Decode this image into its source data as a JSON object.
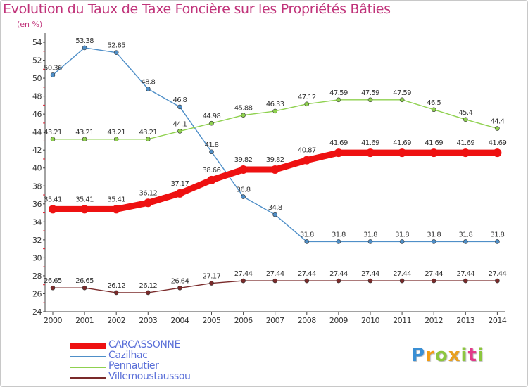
{
  "title": "Evolution du Taux de Taxe Foncière sur les Propriétés Bâties",
  "unit": "(en %)",
  "logo": {
    "letters": [
      "P",
      "r",
      "o",
      "x",
      "i",
      "t",
      "i"
    ],
    "colors": [
      "#3a8fd4",
      "#f39c12",
      "#8cc63e",
      "#e8a020",
      "#8cc63e",
      "#e23a8a",
      "#8cc63e"
    ]
  },
  "chart_data": {
    "type": "line",
    "title": "Evolution du Taux de Taxe Foncière sur les Propriétés Bâties",
    "ylabel": "(en %)",
    "xlabel": "",
    "x": [
      2000,
      2001,
      2002,
      2003,
      2004,
      2005,
      2006,
      2007,
      2008,
      2009,
      2010,
      2011,
      2012,
      2013,
      2014
    ],
    "ylim": [
      24,
      54
    ],
    "yticks": [
      24,
      26,
      28,
      30,
      32,
      34,
      36,
      38,
      40,
      42,
      44,
      46,
      48,
      50,
      52,
      54
    ],
    "grid": false,
    "legend": "bottom-left",
    "series": [
      {
        "name": "CARCASSONNE",
        "color": "#ee1111",
        "emphasis": true,
        "values": [
          35.41,
          35.41,
          35.41,
          36.12,
          37.17,
          38.66,
          39.82,
          39.82,
          40.87,
          41.69,
          41.69,
          41.69,
          41.69,
          41.69,
          41.69
        ],
        "labels": [
          "35.41",
          "35.41",
          "35.41",
          "36.12",
          "37.17",
          "38.66",
          "39.82",
          "39.82",
          "40.87",
          "41.69",
          "41.69",
          "41.69",
          "41.69",
          "41.69",
          "41.69"
        ]
      },
      {
        "name": "Cazilhac",
        "color": "#4f8fc8",
        "values": [
          50.36,
          53.38,
          52.85,
          48.8,
          46.8,
          41.8,
          36.8,
          34.8,
          31.8,
          31.8,
          31.8,
          31.8,
          31.8,
          31.8,
          31.8
        ],
        "labels": [
          "50.36",
          "53.38",
          "52.85",
          "48.8",
          "46.8",
          "41.8",
          "36.8",
          "34.8",
          "31.8",
          "31.8",
          "31.8",
          "31.8",
          "31.8",
          "31.8",
          "31.8"
        ]
      },
      {
        "name": "Pennautier",
        "color": "#8fd14f",
        "values": [
          43.21,
          43.21,
          43.21,
          43.21,
          44.1,
          44.98,
          45.88,
          46.33,
          47.12,
          47.59,
          47.59,
          47.59,
          46.5,
          45.4,
          44.4
        ],
        "labels": [
          "43.21",
          "43.21",
          "43.21",
          "43.21",
          "44.1",
          "44.98",
          "45.88",
          "46.33",
          "47.12",
          "47.59",
          "47.59",
          "47.59",
          "46.5",
          "45.4",
          "44.4"
        ]
      },
      {
        "name": "Villemoustaussou",
        "color": "#7a2a2a",
        "values": [
          26.65,
          26.65,
          26.12,
          26.12,
          26.64,
          27.17,
          27.44,
          27.44,
          27.44,
          27.44,
          27.44,
          27.44,
          27.44,
          27.44,
          27.44
        ],
        "labels": [
          "26.65",
          "26.65",
          "26.12",
          "26.12",
          "26.64",
          "27.17",
          "27.44",
          "27.44",
          "27.44",
          "27.44",
          "27.44",
          "27.44",
          "27.44",
          "27.44",
          "27.44"
        ]
      }
    ]
  }
}
